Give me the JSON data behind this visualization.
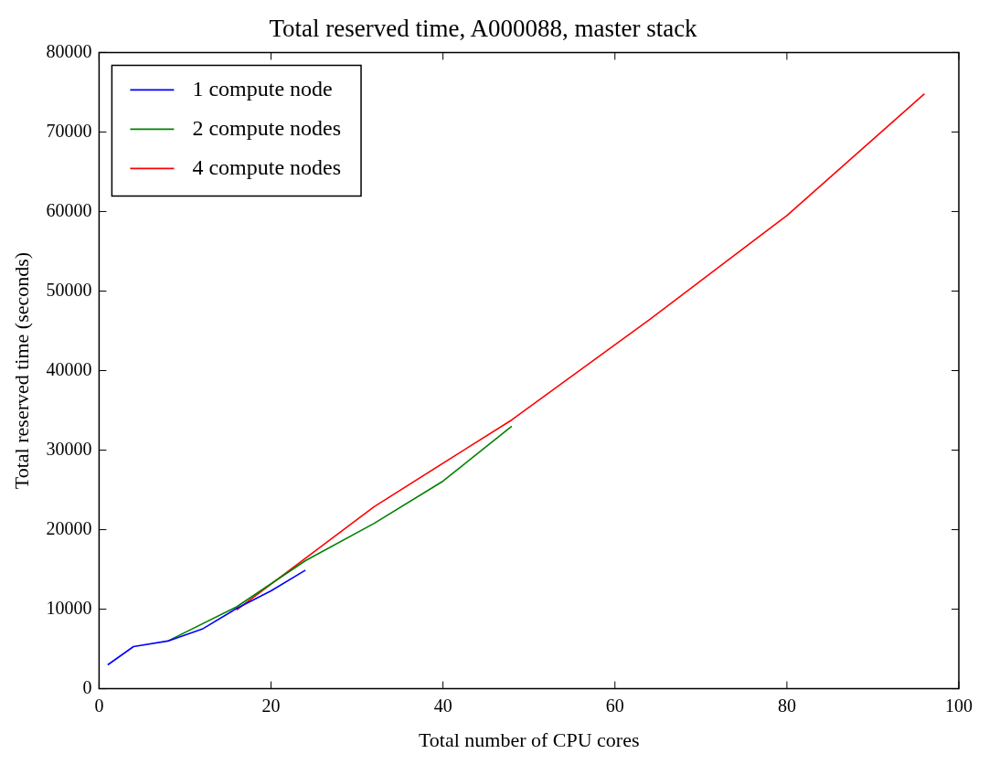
{
  "chart_data": {
    "type": "line",
    "title": "Total reserved time, A000088, master stack",
    "xlabel": "Total number of CPU cores",
    "ylabel": "Total reserved time (seconds)",
    "xlim": [
      0,
      100
    ],
    "xticks": [
      0,
      20,
      40,
      60,
      80,
      100
    ],
    "ylim": [
      0,
      80000
    ],
    "yticks": [
      0,
      10000,
      20000,
      30000,
      40000,
      50000,
      60000,
      70000,
      80000
    ],
    "grid": false,
    "legend": "top left",
    "marker": "none",
    "line_style": "solid",
    "series": [
      {
        "name": "1 compute node",
        "color": "#0000ff",
        "x": [
          1,
          4,
          8,
          12,
          16,
          20,
          24
        ],
        "values": [
          3000,
          5300,
          6000,
          7500,
          10100,
          12300,
          14900
        ]
      },
      {
        "name": "2 compute nodes",
        "color": "#008000",
        "x": [
          8,
          16,
          24,
          32,
          40,
          48
        ],
        "values": [
          6000,
          10300,
          16100,
          20800,
          26100,
          33000
        ]
      },
      {
        "name": "4 compute nodes",
        "color": "#ff0000",
        "x": [
          16,
          32,
          48,
          64,
          80,
          96
        ],
        "values": [
          9900,
          22900,
          33800,
          46400,
          59500,
          74800
        ]
      }
    ]
  }
}
